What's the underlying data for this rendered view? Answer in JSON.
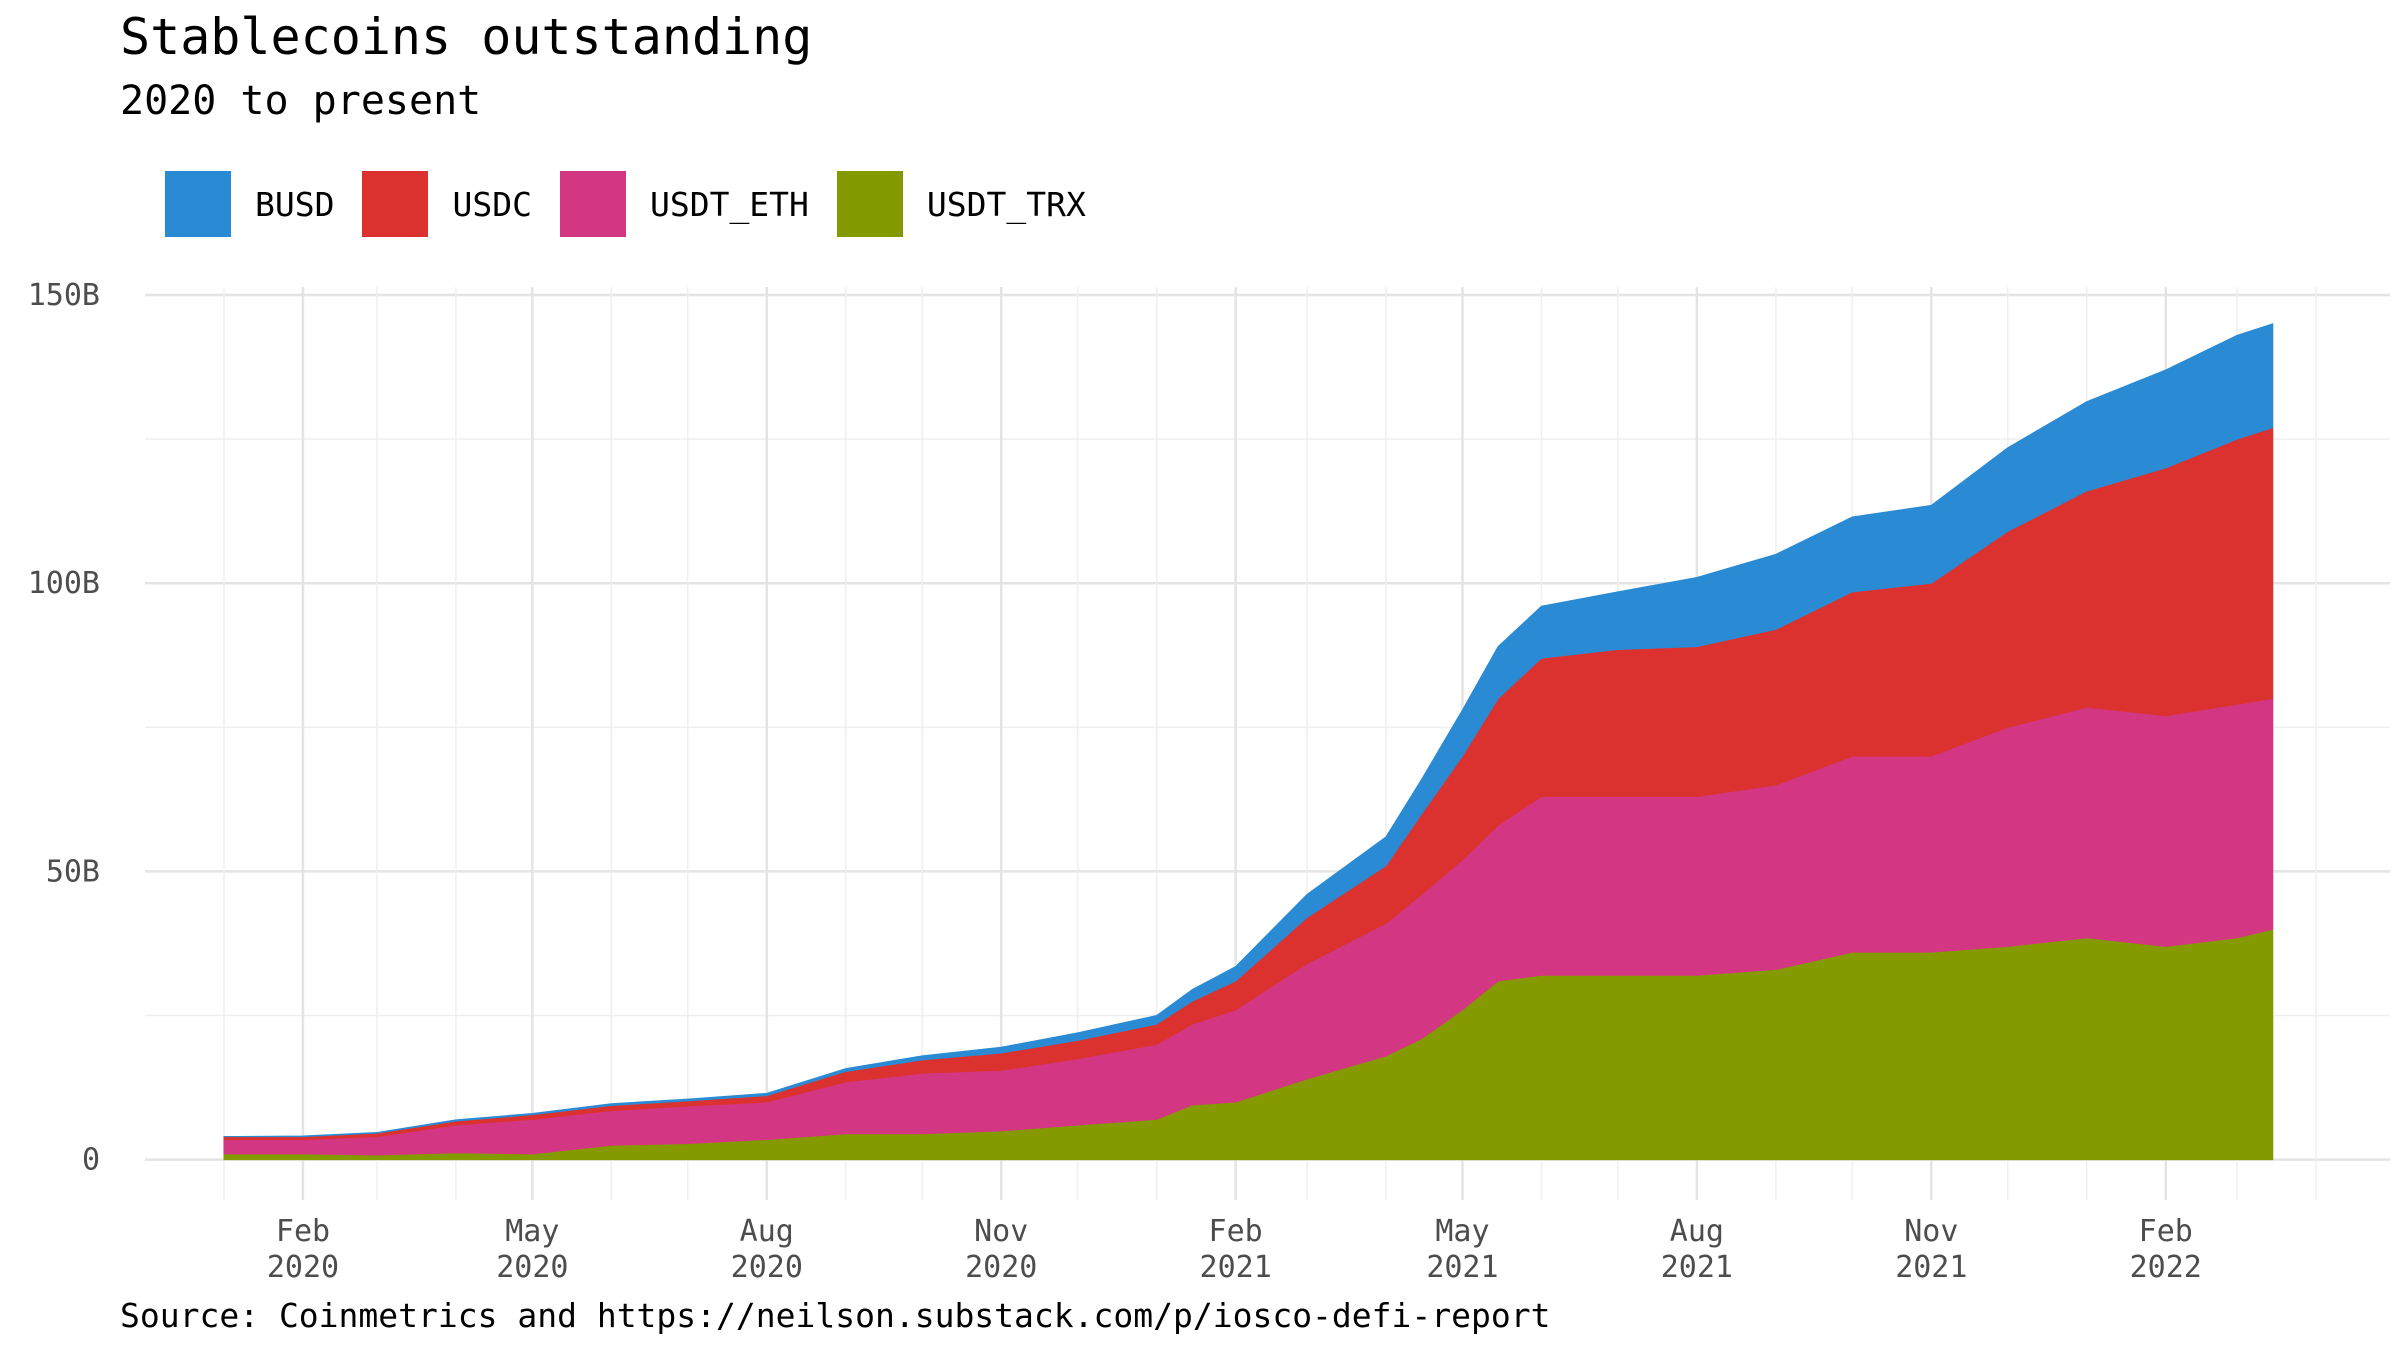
{
  "title": "Stablecoins outstanding",
  "subtitle": "2020 to present",
  "source": "Source: Coinmetrics and https://neilson.substack.com/p/iosco-defi-report",
  "legend": [
    {
      "name": "BUSD",
      "color": "#2a8bd4"
    },
    {
      "name": "USDC",
      "color": "#dc322f"
    },
    {
      "name": "USDT_ETH",
      "color": "#d33682"
    },
    {
      "name": "USDT_TRX",
      "color": "#859900"
    }
  ],
  "chart_data": {
    "type": "area",
    "stacked": true,
    "title": "Stablecoins outstanding",
    "subtitle": "2020 to present",
    "y_ticks": [
      "0",
      "50B",
      "100B",
      "150B"
    ],
    "y_tick_values": [
      0,
      50,
      100,
      150
    ],
    "x_ticks": [
      {
        "date": "2020-02-01",
        "label1": "Feb",
        "label2": "2020"
      },
      {
        "date": "2020-05-01",
        "label1": "May",
        "label2": "2020"
      },
      {
        "date": "2020-08-01",
        "label1": "Aug",
        "label2": "2020"
      },
      {
        "date": "2020-11-01",
        "label1": "Nov",
        "label2": "2020"
      },
      {
        "date": "2021-02-01",
        "label1": "Feb",
        "label2": "2021"
      },
      {
        "date": "2021-05-01",
        "label1": "May",
        "label2": "2021"
      },
      {
        "date": "2021-08-01",
        "label1": "Aug",
        "label2": "2021"
      },
      {
        "date": "2021-11-01",
        "label1": "Nov",
        "label2": "2021"
      },
      {
        "date": "2022-02-01",
        "label1": "Feb",
        "label2": "2022"
      }
    ],
    "xlim": [
      "2019-12-01",
      "2022-04-30"
    ],
    "ylim": [
      -7,
      150
    ],
    "grid": true,
    "legend_position": "top-left",
    "x": [
      "2020-01-01",
      "2020-02-01",
      "2020-03-01",
      "2020-04-01",
      "2020-05-01",
      "2020-06-01",
      "2020-07-01",
      "2020-08-01",
      "2020-09-01",
      "2020-10-01",
      "2020-11-01",
      "2020-12-01",
      "2021-01-01",
      "2021-01-15",
      "2021-02-01",
      "2021-03-01",
      "2021-04-01",
      "2021-04-15",
      "2021-05-01",
      "2021-05-15",
      "2021-06-01",
      "2021-07-01",
      "2021-08-01",
      "2021-09-01",
      "2021-10-01",
      "2021-11-01",
      "2021-12-01",
      "2022-01-01",
      "2022-02-01",
      "2022-03-01",
      "2022-03-15"
    ],
    "series": [
      {
        "name": "USDT_TRX",
        "values": [
          1.0,
          1.0,
          0.8,
          1.2,
          1.0,
          2.5,
          2.8,
          3.5,
          4.5,
          4.5,
          5.0,
          6.0,
          7.0,
          9.5,
          10.0,
          14.0,
          18.0,
          21.0,
          26.0,
          31.0,
          32.0,
          32.0,
          32.0,
          33.0,
          36.0,
          36.0,
          37.0,
          38.5,
          37.0,
          38.5,
          40.0
        ]
      },
      {
        "name": "USDT_ETH",
        "values": [
          2.5,
          2.5,
          3.2,
          4.8,
          6.0,
          6.0,
          6.5,
          6.5,
          9.0,
          10.5,
          10.5,
          11.5,
          13.0,
          14.0,
          16.0,
          20.0,
          23.0,
          25.0,
          26.0,
          27.0,
          31.0,
          31.0,
          31.0,
          32.0,
          34.0,
          34.0,
          38.0,
          40.0,
          40.0,
          40.5,
          40.0
        ]
      },
      {
        "name": "USDC",
        "values": [
          0.5,
          0.5,
          0.6,
          0.7,
          0.8,
          0.9,
          0.9,
          1.1,
          1.8,
          2.3,
          3.0,
          3.2,
          3.5,
          4.0,
          5.0,
          8.0,
          10.0,
          14.0,
          18.0,
          22.0,
          24.0,
          25.5,
          26.0,
          27.0,
          28.5,
          30.0,
          34.0,
          37.5,
          43.0,
          46.0,
          47.0
        ]
      },
      {
        "name": "BUSD",
        "values": [
          0.0,
          0.1,
          0.1,
          0.2,
          0.2,
          0.3,
          0.3,
          0.4,
          0.5,
          0.7,
          1.0,
          1.3,
          1.5,
          2.0,
          2.5,
          4.0,
          5.0,
          6.0,
          8.0,
          9.0,
          9.0,
          10.0,
          12.0,
          13.0,
          13.0,
          13.5,
          14.5,
          15.5,
          17.0,
          18.0,
          18.0
        ]
      }
    ]
  }
}
